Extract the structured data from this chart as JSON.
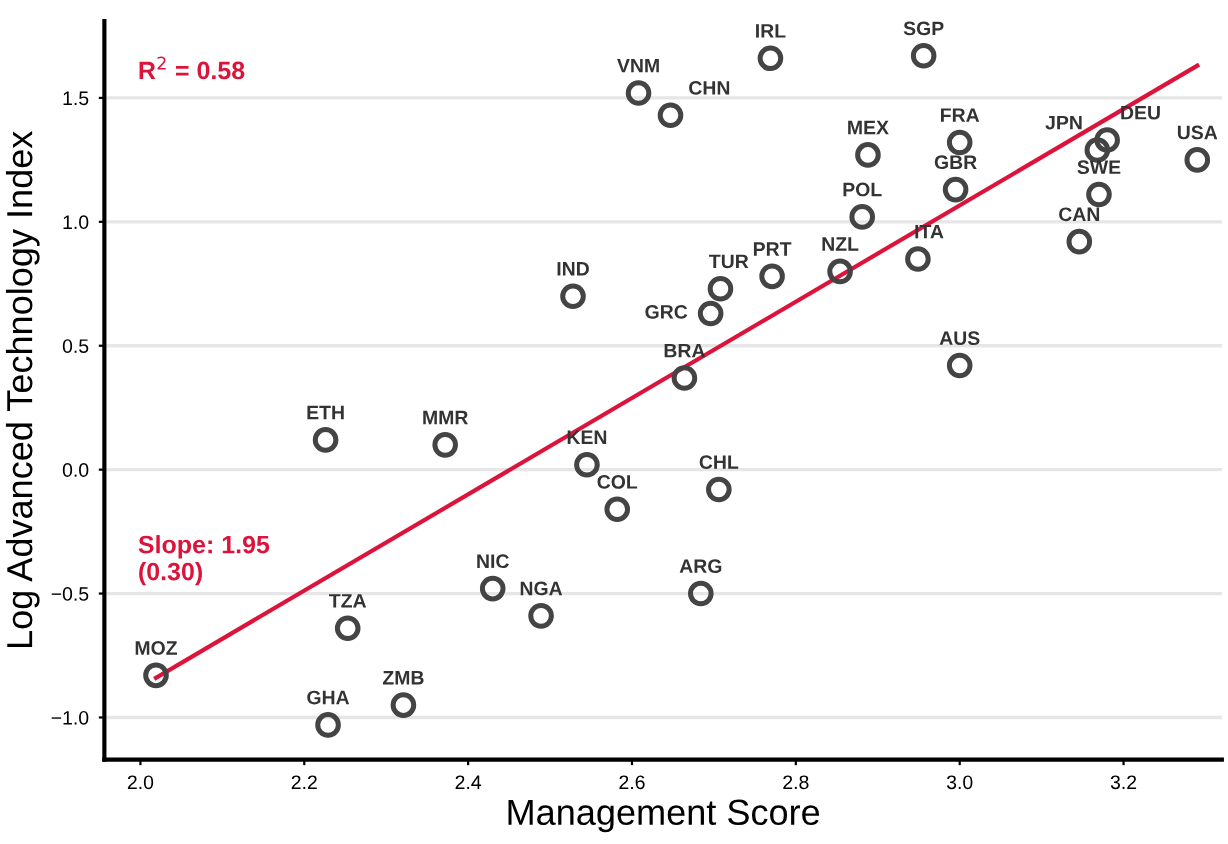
{
  "chart_data": {
    "type": "scatter",
    "xlabel": "Management Score",
    "ylabel": "Log Advanced Technology Index",
    "xlim": [
      1.956,
      3.32
    ],
    "ylim": [
      -1.17,
      1.81
    ],
    "xticks": [
      {
        "value": 2.0,
        "label": "2.0"
      },
      {
        "value": 2.2,
        "label": "2.2"
      },
      {
        "value": 2.4,
        "label": "2.4"
      },
      {
        "value": 2.6,
        "label": "2.6"
      },
      {
        "value": 2.8,
        "label": "2.8"
      },
      {
        "value": 3.0,
        "label": "3.0"
      },
      {
        "value": 3.2,
        "label": "3.2"
      }
    ],
    "yticks": [
      {
        "value": -1.0,
        "label": "−1.0"
      },
      {
        "value": -0.5,
        "label": "−0.5"
      },
      {
        "value": 0.0,
        "label": "0.0"
      },
      {
        "value": 0.5,
        "label": "0.5"
      },
      {
        "value": 1.0,
        "label": "1.0"
      },
      {
        "value": 1.5,
        "label": "1.5"
      }
    ],
    "grid": "y",
    "series": [
      {
        "color": "#444444",
        "marker": "circle",
        "x": [
          2.608,
          2.647,
          2.769,
          2.956,
          2.888,
          3.0,
          2.995,
          2.881,
          3.168,
          3.18,
          3.29,
          3.17,
          3.146,
          2.949,
          2.854,
          2.771,
          2.708,
          2.696,
          2.664,
          3.0,
          2.528,
          2.226,
          2.372,
          2.545,
          2.582,
          2.706,
          2.684,
          2.43,
          2.489,
          2.253,
          2.019,
          2.229,
          2.321
        ],
        "values": [
          1.52,
          1.43,
          1.66,
          1.67,
          1.27,
          1.32,
          1.13,
          1.02,
          1.29,
          1.33,
          1.25,
          1.11,
          0.92,
          0.85,
          0.8,
          0.78,
          0.73,
          0.63,
          0.37,
          0.42,
          0.7,
          0.12,
          0.1,
          0.02,
          -0.16,
          -0.08,
          -0.5,
          -0.48,
          -0.59,
          -0.64,
          -0.83,
          -1.03,
          -0.95
        ]
      },
      {
        "type": "line",
        "color": "#dc143c",
        "x": [
          2.019,
          3.29
        ],
        "values": [
          -0.84,
          1.63
        ]
      }
    ],
    "annotations": [
      {
        "text": "VNM",
        "x": 2.608,
        "y": 1.52
      },
      {
        "text": "CHN",
        "x": 2.647,
        "y": 1.43
      },
      {
        "text": "IRL",
        "x": 2.769,
        "y": 1.66
      },
      {
        "text": "SGP",
        "x": 2.956,
        "y": 1.67
      },
      {
        "text": "MEX",
        "x": 2.888,
        "y": 1.27
      },
      {
        "text": "FRA",
        "x": 3.0,
        "y": 1.32
      },
      {
        "text": "GBR",
        "x": 2.995,
        "y": 1.13
      },
      {
        "text": "POL",
        "x": 2.881,
        "y": 1.02
      },
      {
        "text": "JPN",
        "x": 3.168,
        "y": 1.29
      },
      {
        "text": "DEU",
        "x": 3.18,
        "y": 1.33
      },
      {
        "text": "USA",
        "x": 3.29,
        "y": 1.25
      },
      {
        "text": "SWE",
        "x": 3.17,
        "y": 1.11
      },
      {
        "text": "CAN",
        "x": 3.146,
        "y": 0.92
      },
      {
        "text": "ITA",
        "x": 2.949,
        "y": 0.85
      },
      {
        "text": "NZL",
        "x": 2.854,
        "y": 0.8
      },
      {
        "text": "PRT",
        "x": 2.771,
        "y": 0.78
      },
      {
        "text": "TUR",
        "x": 2.708,
        "y": 0.73
      },
      {
        "text": "GRC",
        "x": 2.696,
        "y": 0.63
      },
      {
        "text": "BRA",
        "x": 2.664,
        "y": 0.37
      },
      {
        "text": "AUS",
        "x": 3.0,
        "y": 0.42
      },
      {
        "text": "IND",
        "x": 2.528,
        "y": 0.7
      },
      {
        "text": "ETH",
        "x": 2.226,
        "y": 0.12
      },
      {
        "text": "MMR",
        "x": 2.372,
        "y": 0.1
      },
      {
        "text": "KEN",
        "x": 2.545,
        "y": 0.02
      },
      {
        "text": "COL",
        "x": 2.582,
        "y": -0.16
      },
      {
        "text": "CHL",
        "x": 2.706,
        "y": -0.08
      },
      {
        "text": "ARG",
        "x": 2.684,
        "y": -0.5
      },
      {
        "text": "NIC",
        "x": 2.43,
        "y": -0.48
      },
      {
        "text": "NGA",
        "x": 2.489,
        "y": -0.59
      },
      {
        "text": "TZA",
        "x": 2.253,
        "y": -0.64
      },
      {
        "text": "MOZ",
        "x": 2.019,
        "y": -0.83
      },
      {
        "text": "GHA",
        "x": 2.229,
        "y": -1.03
      },
      {
        "text": "ZMB",
        "x": 2.321,
        "y": -0.95
      },
      "R$^{2}$ = 0.58",
      "Slope: 1.95\n(0.30)"
    ]
  }
}
